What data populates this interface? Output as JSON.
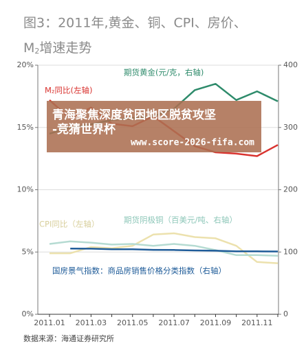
{
  "chart_data": {
    "type": "line",
    "title": "图3：2011年,黄金、铜、CPI、房价、",
    "subtitle_parts": [
      "M",
      "2",
      "增速走势"
    ],
    "categories": [
      "2011.01",
      null,
      "2011.03",
      null,
      "2011.05",
      null,
      "2011.07",
      null,
      "2011.09",
      null,
      "2011.11",
      null
    ],
    "ylim": [
      0,
      20
    ],
    "yticks": [
      {
        "value": 0,
        "label": "0%"
      },
      {
        "value": 5,
        "label": "5%"
      },
      {
        "value": 10,
        "label": "10%"
      },
      {
        "value": 15,
        "label": "15%"
      },
      {
        "value": 20,
        "label": "20%"
      }
    ],
    "y2lim": [
      0,
      400
    ],
    "y2ticks": [
      0,
      100,
      200,
      300,
      400
    ],
    "grid": true,
    "series": [
      {
        "name": "期货黄金(元/克，右轴)",
        "color": "#2e8b6b",
        "axis": "y2",
        "values": [
          290,
          300,
          305,
          312,
          315,
          318,
          330,
          360,
          370,
          344,
          358,
          342
        ]
      },
      {
        "name": "M₂同比(左轴)",
        "color": "#d9332f",
        "values": [
          17.2,
          15.7,
          16.6,
          15.3,
          15.1,
          15.9,
          14.7,
          13.5,
          13.0,
          12.9,
          12.7,
          13.6
        ]
      },
      {
        "name": "CPI同比（左轴）",
        "color": "#ece1ad",
        "values": [
          4.9,
          4.9,
          5.4,
          5.3,
          5.5,
          6.4,
          6.5,
          6.2,
          6.1,
          5.5,
          4.2,
          4.1
        ]
      },
      {
        "name": "期货阴极铜（百美元/吨、右轴）",
        "color": "#b5dbd2",
        "axis": "y2",
        "values": [
          113,
          117,
          115,
          112,
          113,
          110,
          113,
          110,
          103,
          95,
          95,
          94
        ]
      },
      {
        "name": "国房景气指数：商品房销售价格分类指数（右轴）",
        "color": "#1f5c99",
        "axis": "y2",
        "values": [
          null,
          105.5,
          105.3,
          104.5,
          104.3,
          103.5,
          103.3,
          102.5,
          102.0,
          101.2,
          101.0,
          100.8
        ]
      }
    ],
    "source": "数据来源：海通证券研究所",
    "overlay": {
      "headline": "青海聚焦深度贫困地区脱贫攻坚-竞猜世界杯",
      "url": "www.score-2026-fifa.com"
    }
  }
}
